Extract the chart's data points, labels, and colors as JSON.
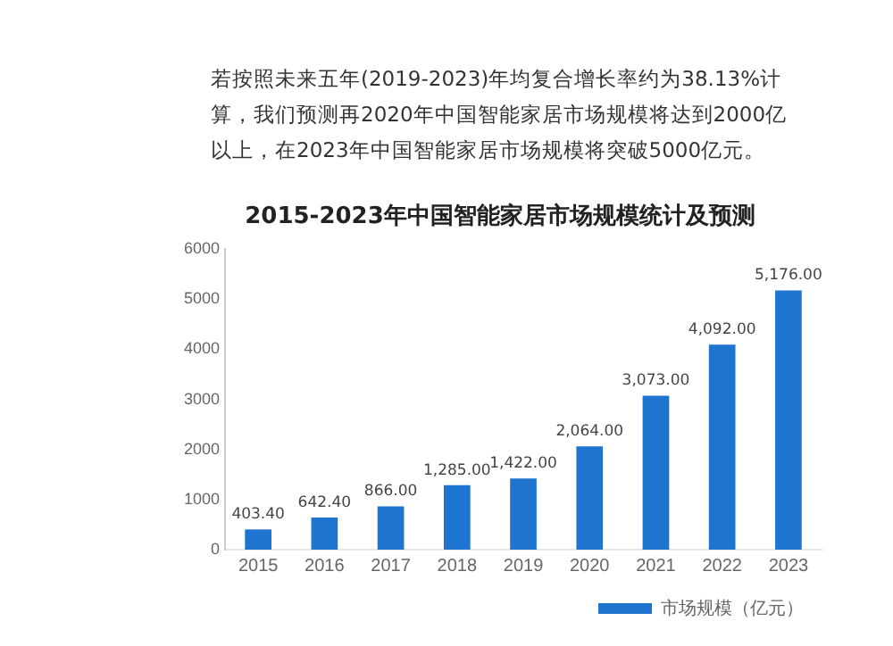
{
  "chart_data": {
    "type": "bar",
    "title": "2015-2023年中国智能家居市场规模统计及预测",
    "annotations": [
      "若按照未来五年(2019-2023)年均复合增长率约为38.13%计算，我们预测再2020年中国智能家居市场规模将达到2000亿以上，在2023年中国智能家居市场规模将突破5000亿元。"
    ],
    "categories": [
      "2015",
      "2016",
      "2017",
      "2018",
      "2019",
      "2020",
      "2021",
      "2022",
      "2023"
    ],
    "series": [
      {
        "name": "市场规模（亿元）",
        "color": "#1f74d0",
        "values": [
          403.4,
          642.4,
          866,
          1285,
          1422,
          2064,
          3073,
          4092,
          5176
        ],
        "value_labels": [
          "403.40",
          "642.40",
          "866.00",
          "1,285.00",
          "1,422.00",
          "2,064.00",
          "3,073.00",
          "4,092.00",
          "5,176.00"
        ]
      }
    ],
    "ylim": [
      0,
      6000
    ],
    "yticks": [
      0,
      1000,
      2000,
      3000,
      4000,
      5000,
      6000
    ],
    "grid": false,
    "legend": "bottom"
  }
}
